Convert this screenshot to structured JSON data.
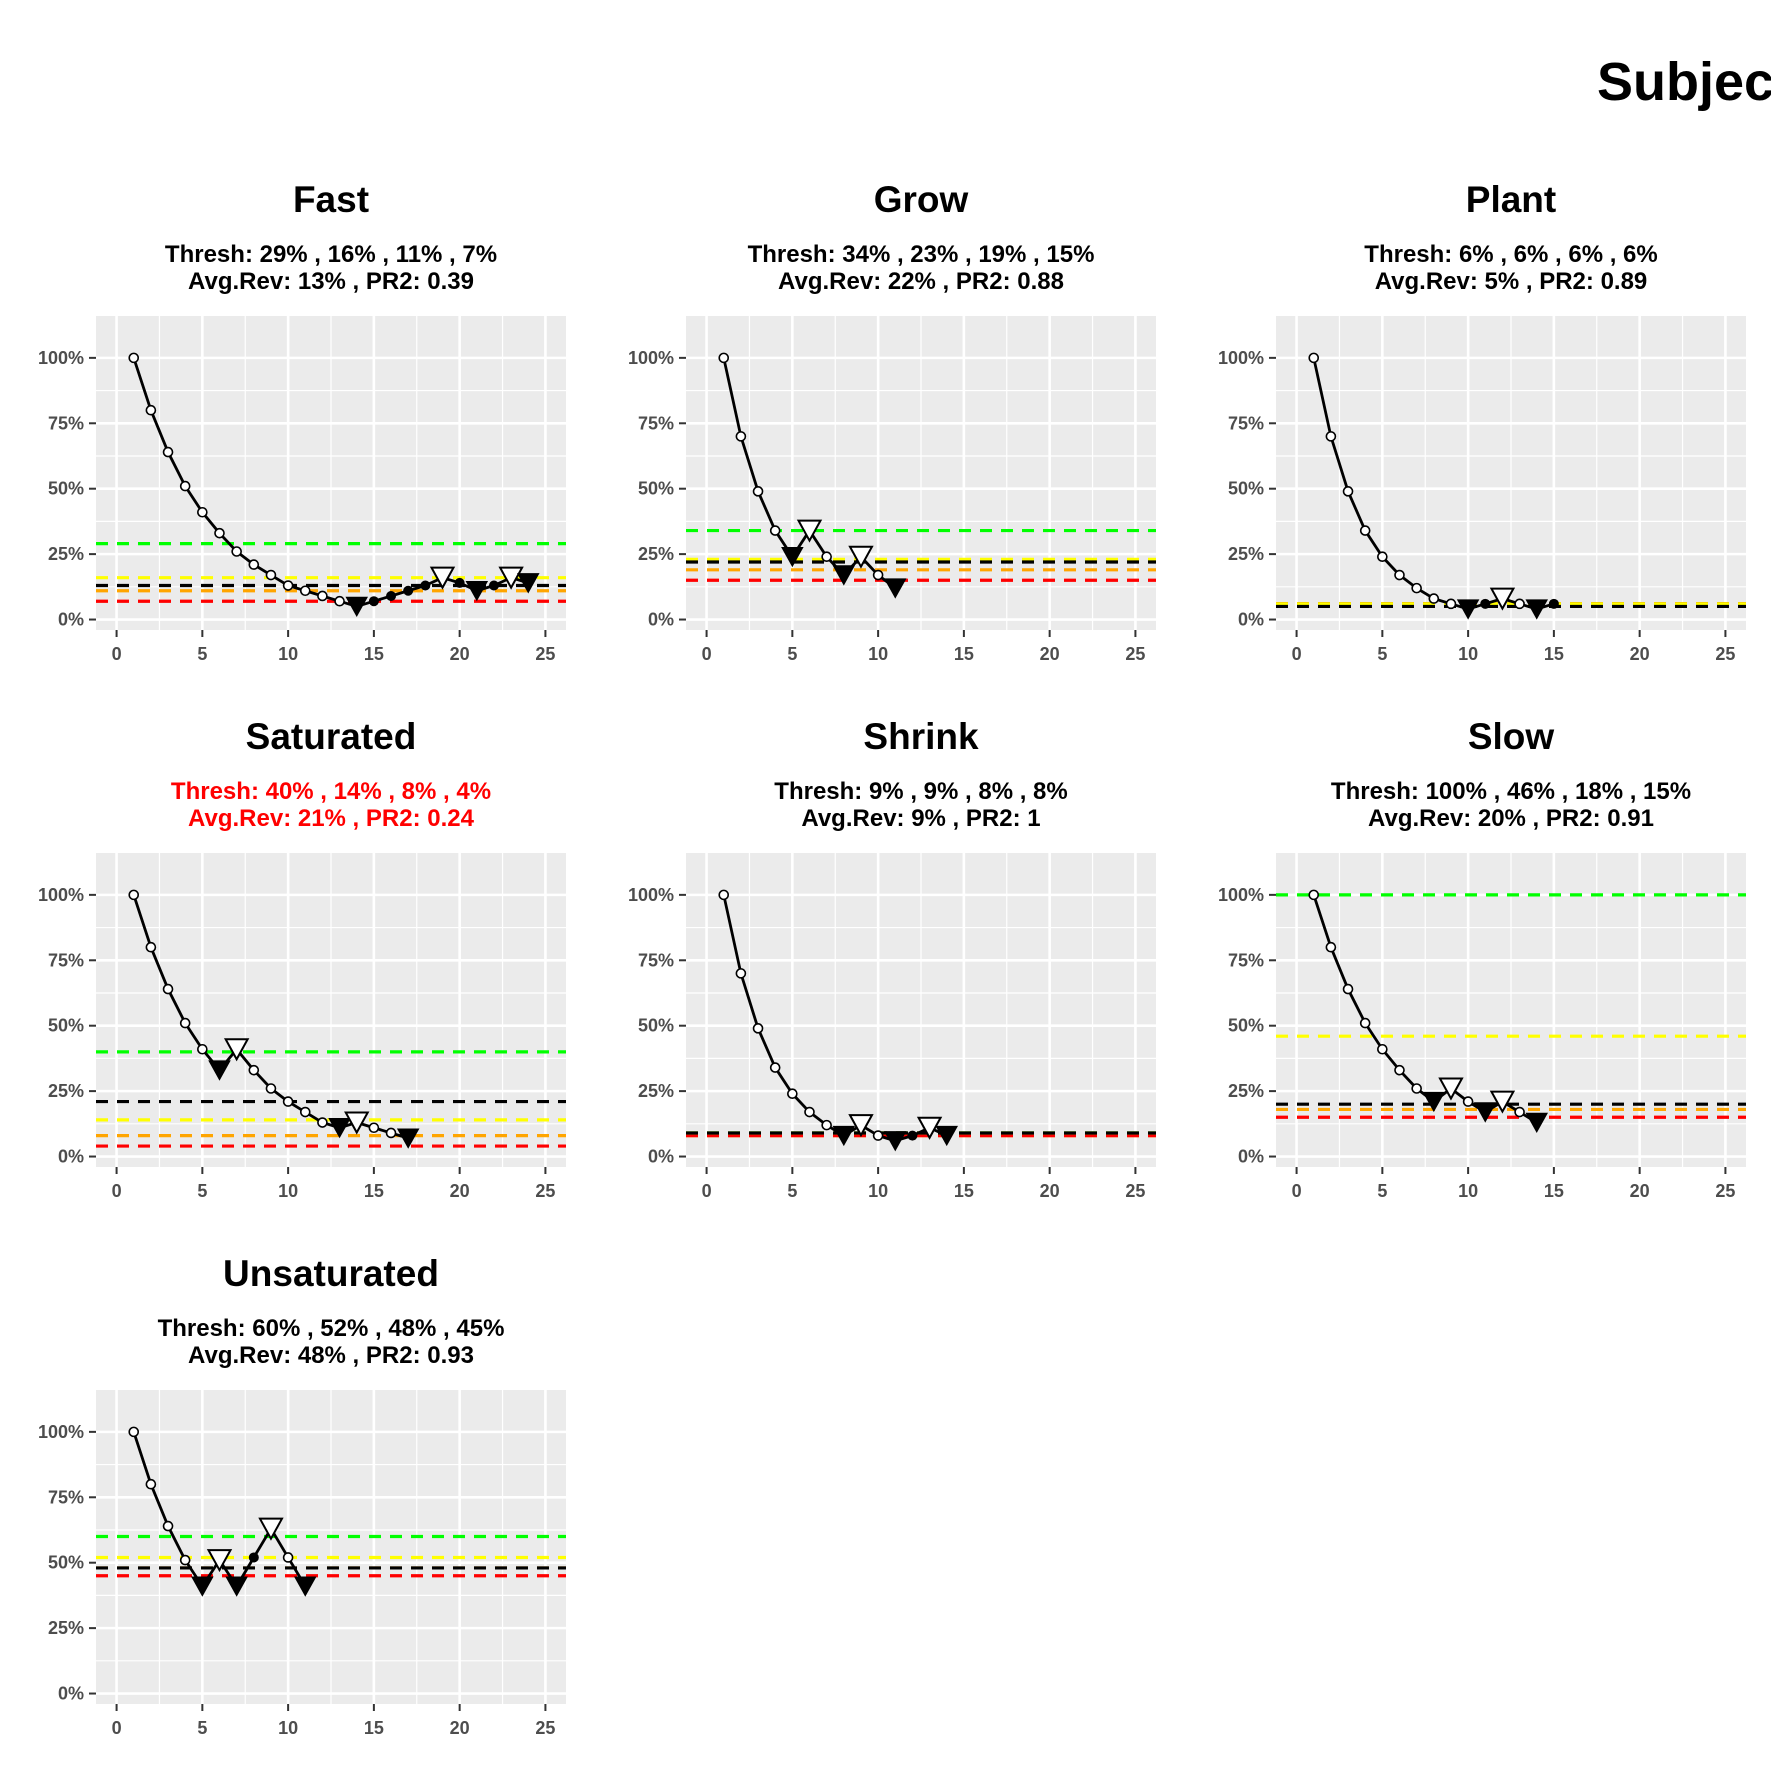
{
  "figure": {
    "title": "Subject"
  },
  "axes": {
    "x_ticks": [
      0,
      5,
      10,
      15,
      20,
      25
    ],
    "xlim": [
      -1.2,
      26.2
    ],
    "y_ticks": [
      0,
      25,
      50,
      75,
      100
    ],
    "y_tick_labels": [
      "0%",
      "25%",
      "50%",
      "75%",
      "100%"
    ],
    "ylim": [
      -4,
      116
    ]
  },
  "colors": {
    "panel_bg": "#ebebeb",
    "grid": "#ffffff",
    "line": "#000000",
    "threshold_lines": [
      "#00ff00",
      "#ffff00",
      "#ffa500",
      "#ff0000"
    ],
    "avg_rev_line": "#000000",
    "flagged_text": "#ff0000",
    "normal_text": "#000000"
  },
  "chart_data": [
    {
      "type": "line",
      "title": "Fast",
      "thresh_text": "Thresh: 29% , 16% , 11% , 7%",
      "avgrev_text": "Avg.Rev: 13% , PR2: 0.39",
      "flagged": false,
      "thresholds": [
        29,
        16,
        11,
        7
      ],
      "avg_rev": 13,
      "x": [
        1,
        2,
        3,
        4,
        5,
        6,
        7,
        8,
        9,
        10,
        11,
        12,
        13,
        14,
        15,
        16,
        17,
        18,
        19,
        20,
        21,
        22,
        23,
        24
      ],
      "y": [
        100,
        80,
        64,
        51,
        41,
        33,
        26,
        21,
        17,
        13,
        11,
        9,
        7,
        5,
        7,
        9,
        11,
        13,
        16,
        14,
        11,
        13,
        16,
        14
      ],
      "markers": [
        "o",
        "o",
        "o",
        "o",
        "o",
        "o",
        "o",
        "o",
        "o",
        "o",
        "o",
        "o",
        "o",
        "v",
        "f",
        "f",
        "f",
        "f",
        "^",
        "f",
        "v",
        "f",
        "^",
        "v"
      ]
    },
    {
      "type": "line",
      "title": "Grow",
      "thresh_text": "Thresh: 34% , 23% , 19% , 15%",
      "avgrev_text": "Avg.Rev: 22% , PR2: 0.88",
      "flagged": false,
      "thresholds": [
        34,
        23,
        19,
        15
      ],
      "avg_rev": 22,
      "x": [
        1,
        2,
        3,
        4,
        5,
        6,
        7,
        8,
        9,
        10,
        11
      ],
      "y": [
        100,
        70,
        49,
        34,
        24,
        34,
        24,
        17,
        24,
        17,
        12
      ],
      "markers": [
        "o",
        "o",
        "o",
        "o",
        "v",
        "^",
        "o",
        "v",
        "^",
        "o",
        "v"
      ]
    },
    {
      "type": "line",
      "title": "Plant",
      "thresh_text": "Thresh: 6% , 6% , 6% , 6%",
      "avgrev_text": "Avg.Rev: 5% , PR2: 0.89",
      "flagged": false,
      "thresholds": [
        6,
        6,
        6,
        6
      ],
      "avg_rev": 5,
      "x": [
        1,
        2,
        3,
        4,
        5,
        6,
        7,
        8,
        9,
        10,
        11,
        12,
        13,
        14,
        15
      ],
      "y": [
        100,
        70,
        49,
        34,
        24,
        17,
        12,
        8,
        6,
        4,
        6,
        8,
        6,
        4,
        6
      ],
      "markers": [
        "o",
        "o",
        "o",
        "o",
        "o",
        "o",
        "o",
        "o",
        "o",
        "v",
        "f",
        "^",
        "o",
        "v",
        "f"
      ]
    },
    {
      "type": "line",
      "title": "Saturated",
      "thresh_text": "Thresh: 40% , 14% , 8% , 4%",
      "avgrev_text": "Avg.Rev: 21% , PR2: 0.24",
      "flagged": true,
      "thresholds": [
        40,
        14,
        8,
        4
      ],
      "avg_rev": 21,
      "x": [
        1,
        2,
        3,
        4,
        5,
        6,
        7,
        8,
        9,
        10,
        11,
        12,
        13,
        14,
        15,
        16,
        17
      ],
      "y": [
        100,
        80,
        64,
        51,
        41,
        33,
        41,
        33,
        26,
        21,
        17,
        13,
        11,
        13,
        11,
        9,
        7
      ],
      "markers": [
        "o",
        "o",
        "o",
        "o",
        "o",
        "v",
        "^",
        "o",
        "o",
        "o",
        "o",
        "o",
        "v",
        "^",
        "o",
        "o",
        "v"
      ]
    },
    {
      "type": "line",
      "title": "Shrink",
      "thresh_text": "Thresh: 9% , 9% , 8% , 8%",
      "avgrev_text": "Avg.Rev: 9% , PR2: 1",
      "flagged": false,
      "thresholds": [
        9,
        9,
        8,
        8
      ],
      "avg_rev": 9,
      "x": [
        1,
        2,
        3,
        4,
        5,
        6,
        7,
        8,
        9,
        10,
        11,
        12,
        13,
        14
      ],
      "y": [
        100,
        70,
        49,
        34,
        24,
        17,
        12,
        8,
        12,
        8,
        6,
        8,
        11,
        8
      ],
      "markers": [
        "o",
        "o",
        "o",
        "o",
        "o",
        "o",
        "o",
        "v",
        "^",
        "o",
        "v",
        "f",
        "^",
        "v"
      ]
    },
    {
      "type": "line",
      "title": "Slow",
      "thresh_text": "Thresh: 100% , 46% , 18% , 15%",
      "avgrev_text": "Avg.Rev: 20% , PR2: 0.91",
      "flagged": false,
      "thresholds": [
        100,
        46,
        18,
        15
      ],
      "avg_rev": 20,
      "x": [
        1,
        2,
        3,
        4,
        5,
        6,
        7,
        8,
        9,
        10,
        11,
        12,
        13,
        14
      ],
      "y": [
        100,
        80,
        64,
        51,
        41,
        33,
        26,
        21,
        26,
        21,
        17,
        21,
        17,
        13
      ],
      "markers": [
        "o",
        "o",
        "o",
        "o",
        "o",
        "o",
        "o",
        "v",
        "^",
        "o",
        "v",
        "^",
        "o",
        "v"
      ]
    },
    {
      "type": "line",
      "title": "Unsaturated",
      "thresh_text": "Thresh: 60% , 52% , 48% , 45%",
      "avgrev_text": "Avg.Rev: 48% , PR2: 0.93",
      "flagged": false,
      "thresholds": [
        60,
        52,
        48,
        45
      ],
      "avg_rev": 48,
      "x": [
        1,
        2,
        3,
        4,
        5,
        6,
        7,
        8,
        9,
        10,
        11
      ],
      "y": [
        100,
        80,
        64,
        51,
        41,
        51,
        41,
        52,
        63,
        52,
        41
      ],
      "markers": [
        "o",
        "o",
        "o",
        "o",
        "v",
        "^",
        "v",
        "f",
        "^",
        "o",
        "v"
      ]
    }
  ]
}
